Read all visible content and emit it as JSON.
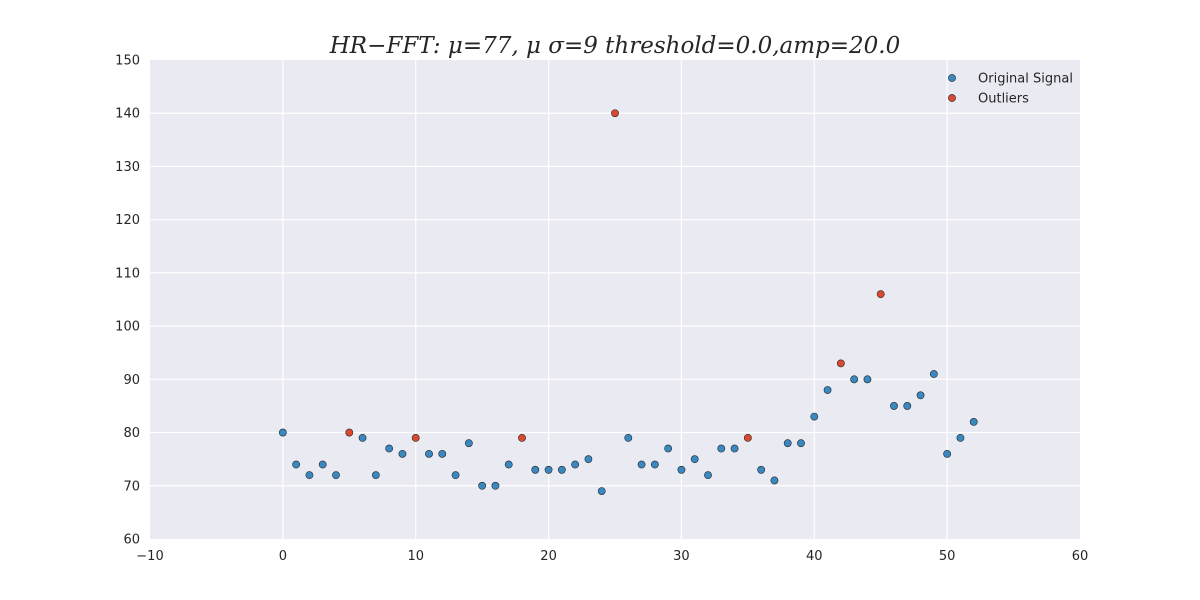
{
  "chart_data": {
    "type": "scatter",
    "title": "HR−FFT:  μ=77, μ  σ=9 threshold=0.0,amp=20.0",
    "xlabel": "",
    "ylabel": "",
    "xlim": [
      -10,
      60
    ],
    "ylim": [
      60,
      150
    ],
    "xticks": [
      -10,
      0,
      10,
      20,
      30,
      40,
      50,
      60
    ],
    "yticks": [
      60,
      70,
      80,
      90,
      100,
      110,
      120,
      130,
      140,
      150
    ],
    "grid": true,
    "legend_position": "top-right",
    "background_color": "#eaeaf2",
    "series": [
      {
        "name": "Original Signal",
        "color": "#3a88c0",
        "points": [
          [
            0,
            80
          ],
          [
            1,
            74
          ],
          [
            2,
            72
          ],
          [
            3,
            74
          ],
          [
            4,
            72
          ],
          [
            6,
            79
          ],
          [
            7,
            72
          ],
          [
            8,
            77
          ],
          [
            9,
            76
          ],
          [
            11,
            76
          ],
          [
            12,
            76
          ],
          [
            13,
            72
          ],
          [
            14,
            78
          ],
          [
            15,
            70
          ],
          [
            16,
            70
          ],
          [
            17,
            74
          ],
          [
            19,
            73
          ],
          [
            20,
            73
          ],
          [
            21,
            73
          ],
          [
            22,
            74
          ],
          [
            23,
            75
          ],
          [
            24,
            69
          ],
          [
            26,
            79
          ],
          [
            27,
            74
          ],
          [
            28,
            74
          ],
          [
            29,
            77
          ],
          [
            30,
            73
          ],
          [
            31,
            75
          ],
          [
            32,
            72
          ],
          [
            33,
            77
          ],
          [
            34,
            77
          ],
          [
            36,
            73
          ],
          [
            37,
            71
          ],
          [
            38,
            78
          ],
          [
            39,
            78
          ],
          [
            40,
            83
          ],
          [
            41,
            88
          ],
          [
            43,
            90
          ],
          [
            44,
            90
          ],
          [
            46,
            85
          ],
          [
            47,
            85
          ],
          [
            48,
            87
          ],
          [
            49,
            91
          ],
          [
            50,
            76
          ],
          [
            51,
            79
          ],
          [
            52,
            82
          ]
        ]
      },
      {
        "name": "Outliers",
        "color": "#d9492f",
        "points": [
          [
            5,
            80
          ],
          [
            10,
            79
          ],
          [
            18,
            79
          ],
          [
            25,
            140
          ],
          [
            35,
            79
          ],
          [
            42,
            93
          ],
          [
            45,
            106
          ]
        ]
      }
    ]
  }
}
